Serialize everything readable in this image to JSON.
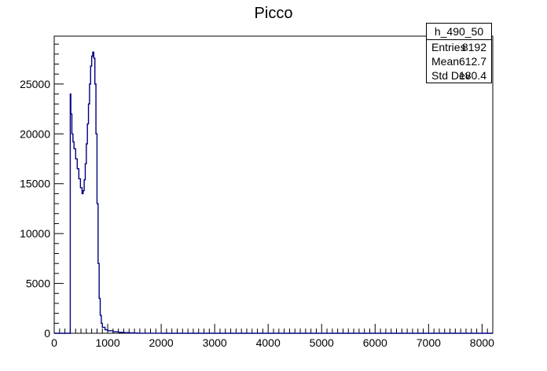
{
  "chart_data": {
    "type": "line",
    "title": "Picco",
    "xlabel": "",
    "ylabel": "",
    "xlim": [
      0,
      8200
    ],
    "ylim": [
      0,
      29800
    ],
    "x_ticks": [
      "0",
      "1000",
      "2000",
      "3000",
      "4000",
      "5000",
      "6000",
      "7000",
      "8000"
    ],
    "y_ticks": [
      "0",
      "5000",
      "10000",
      "15000",
      "20000",
      "25000"
    ],
    "series": [
      {
        "color": "#000080",
        "x": [
          0,
          290,
          300,
          310,
          330,
          350,
          370,
          400,
          430,
          460,
          490,
          520,
          540,
          560,
          580,
          600,
          620,
          640,
          660,
          680,
          700,
          720,
          740,
          760,
          780,
          800,
          820,
          840,
          860,
          880,
          900,
          950,
          1000,
          1100,
          1200,
          1300,
          1400,
          1500,
          1550,
          1600,
          1800,
          2000,
          8200
        ],
        "y": [
          0,
          0,
          24000,
          22000,
          20000,
          19200,
          18500,
          17500,
          16500,
          15500,
          14600,
          14000,
          14300,
          15400,
          17000,
          19000,
          21000,
          23000,
          25000,
          26800,
          27800,
          28200,
          27600,
          25000,
          20000,
          13000,
          7000,
          3500,
          1800,
          1000,
          600,
          350,
          250,
          150,
          90,
          60,
          40,
          20,
          10,
          5,
          2,
          0,
          0
        ]
      }
    ]
  },
  "stats": {
    "name": "h_490_50",
    "rows": [
      {
        "label": "Entries",
        "value": "8192"
      },
      {
        "label": "Mean",
        "value": "612.7"
      },
      {
        "label": "Std Dev",
        "value": "180.4"
      }
    ]
  }
}
